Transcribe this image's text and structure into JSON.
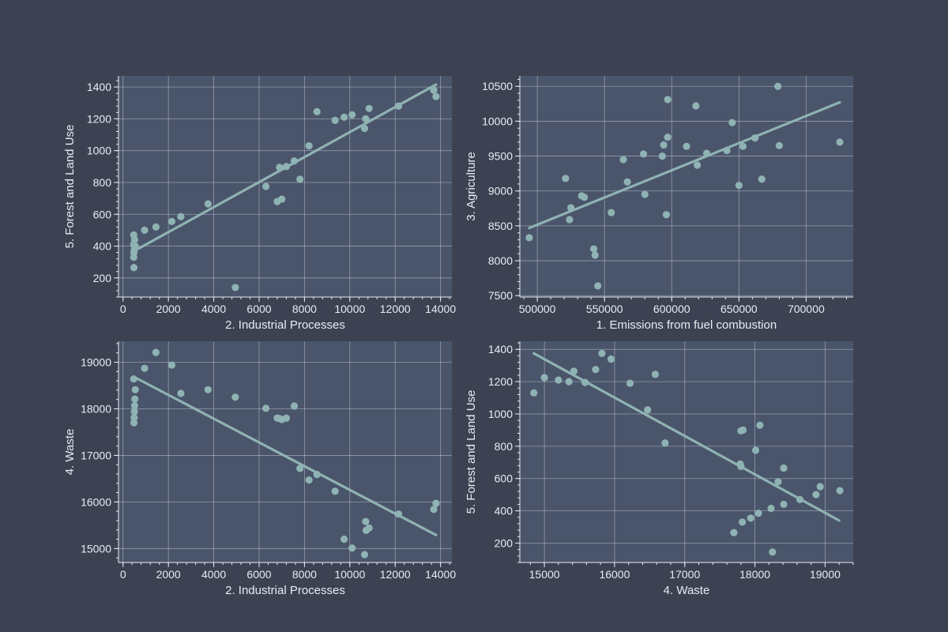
{
  "colors": {
    "background": "#3c4252",
    "plot_area": "#4a556b",
    "points": "#8fb3b3",
    "fit_line": "#8fb3b3",
    "text": "#e8ecf2",
    "grid": "#d0d6e0"
  },
  "chart_data": [
    {
      "type": "scatter",
      "title": "",
      "xlabel": "2. Industrial Processes",
      "ylabel": "5. Forest and Land Use",
      "xlim": [
        -200,
        14500
      ],
      "ylim": [
        80,
        1470
      ],
      "xticks": [
        0,
        2000,
        4000,
        6000,
        8000,
        10000,
        12000,
        14000
      ],
      "yticks": [
        200,
        400,
        600,
        800,
        1000,
        1200,
        1400
      ],
      "x_minor_step": 400,
      "y_minor_step": 40,
      "grid": true,
      "trendline": {
        "x": [
          500,
          13800
        ],
        "y": [
          370,
          1415
        ]
      },
      "points": [
        [
          470,
          470
        ],
        [
          470,
          410
        ],
        [
          480,
          360
        ],
        [
          470,
          330
        ],
        [
          480,
          265
        ],
        [
          500,
          380
        ],
        [
          510,
          440
        ],
        [
          540,
          400
        ],
        [
          950,
          500
        ],
        [
          1450,
          520
        ],
        [
          2150,
          555
        ],
        [
          2550,
          585
        ],
        [
          3750,
          665
        ],
        [
          4950,
          140
        ],
        [
          6300,
          775
        ],
        [
          6800,
          680
        ],
        [
          6900,
          895
        ],
        [
          7000,
          695
        ],
        [
          7200,
          900
        ],
        [
          7550,
          935
        ],
        [
          7800,
          820
        ],
        [
          8200,
          1030
        ],
        [
          8550,
          1245
        ],
        [
          9350,
          1190
        ],
        [
          9750,
          1210
        ],
        [
          10100,
          1225
        ],
        [
          10650,
          1140
        ],
        [
          10700,
          1200
        ],
        [
          10850,
          1265
        ],
        [
          12150,
          1280
        ],
        [
          13700,
          1380
        ],
        [
          13800,
          1340
        ]
      ]
    },
    {
      "type": "scatter",
      "title": "",
      "xlabel": "1. Emissions from fuel combustion",
      "ylabel": "3. Agriculture",
      "xlim": [
        487000,
        735000
      ],
      "ylim": [
        7480,
        10650
      ],
      "xticks": [
        500000,
        550000,
        600000,
        650000,
        700000
      ],
      "yticks": [
        7500,
        8000,
        8500,
        9000,
        9500,
        10000,
        10500
      ],
      "x_minor_step": 10000,
      "y_minor_step": 100,
      "grid": true,
      "trendline": {
        "x": [
          494000,
          725000
        ],
        "y": [
          8470,
          10270
        ]
      },
      "points": [
        [
          494000,
          8330
        ],
        [
          521000,
          9180
        ],
        [
          524000,
          8590
        ],
        [
          525000,
          8760
        ],
        [
          533000,
          8930
        ],
        [
          535000,
          8910
        ],
        [
          542000,
          8170
        ],
        [
          543000,
          8080
        ],
        [
          545000,
          7640
        ],
        [
          555000,
          8690
        ],
        [
          564000,
          9450
        ],
        [
          567000,
          9130
        ],
        [
          579000,
          9530
        ],
        [
          580000,
          8950
        ],
        [
          593000,
          9500
        ],
        [
          594000,
          9660
        ],
        [
          596000,
          8660
        ],
        [
          597000,
          10310
        ],
        [
          597000,
          9770
        ],
        [
          611000,
          9640
        ],
        [
          618000,
          10220
        ],
        [
          619000,
          9370
        ],
        [
          626000,
          9540
        ],
        [
          641000,
          9580
        ],
        [
          645000,
          9980
        ],
        [
          650000,
          9080
        ],
        [
          653000,
          9640
        ],
        [
          662000,
          9760
        ],
        [
          667000,
          9170
        ],
        [
          679000,
          10500
        ],
        [
          680000,
          9650
        ],
        [
          725000,
          9700
        ]
      ]
    },
    {
      "type": "scatter",
      "title": "",
      "xlabel": "2. Industrial Processes",
      "ylabel": "4. Waste",
      "xlim": [
        -200,
        14500
      ],
      "ylim": [
        14700,
        19450
      ],
      "xticks": [
        0,
        2000,
        4000,
        6000,
        8000,
        10000,
        12000,
        14000
      ],
      "yticks": [
        15000,
        16000,
        17000,
        18000,
        19000
      ],
      "x_minor_step": 400,
      "y_minor_step": 200,
      "grid": true,
      "trendline": {
        "x": [
          500,
          13800
        ],
        "y": [
          18680,
          15290
        ]
      },
      "points": [
        [
          470,
          18640
        ],
        [
          480,
          17700
        ],
        [
          490,
          17810
        ],
        [
          500,
          17940
        ],
        [
          510,
          18070
        ],
        [
          520,
          18210
        ],
        [
          540,
          18410
        ],
        [
          950,
          18870
        ],
        [
          1450,
          19210
        ],
        [
          2150,
          18940
        ],
        [
          2550,
          18330
        ],
        [
          3750,
          18410
        ],
        [
          4950,
          18250
        ],
        [
          6300,
          18010
        ],
        [
          6800,
          17800
        ],
        [
          6900,
          17790
        ],
        [
          7000,
          17770
        ],
        [
          7200,
          17800
        ],
        [
          7550,
          18060
        ],
        [
          7800,
          16720
        ],
        [
          8200,
          16470
        ],
        [
          8550,
          16590
        ],
        [
          9350,
          16230
        ],
        [
          9750,
          15200
        ],
        [
          10100,
          15010
        ],
        [
          10650,
          14870
        ],
        [
          10700,
          15580
        ],
        [
          10720,
          15390
        ],
        [
          10850,
          15440
        ],
        [
          12150,
          15740
        ],
        [
          13700,
          15840
        ],
        [
          13800,
          15970
        ]
      ]
    },
    {
      "type": "scatter",
      "title": "",
      "xlabel": "4. Waste",
      "ylabel": "5. Forest and Land Use",
      "xlim": [
        14650,
        19400
      ],
      "ylim": [
        80,
        1450
      ],
      "xticks": [
        15000,
        16000,
        17000,
        18000,
        19000
      ],
      "yticks": [
        200,
        400,
        600,
        800,
        1000,
        1200,
        1400
      ],
      "x_minor_step": 200,
      "y_minor_step": 40,
      "grid": true,
      "trendline": {
        "x": [
          14850,
          19200
        ],
        "y": [
          1375,
          340
        ]
      },
      "points": [
        [
          14850,
          1130
        ],
        [
          15000,
          1225
        ],
        [
          15200,
          1210
        ],
        [
          15350,
          1200
        ],
        [
          15420,
          1265
        ],
        [
          15580,
          1195
        ],
        [
          15730,
          1275
        ],
        [
          15820,
          1375
        ],
        [
          15950,
          1340
        ],
        [
          16220,
          1190
        ],
        [
          16470,
          1025
        ],
        [
          16580,
          1245
        ],
        [
          16720,
          820
        ],
        [
          17700,
          265
        ],
        [
          17790,
          690
        ],
        [
          17800,
          675
        ],
        [
          17800,
          895
        ],
        [
          17820,
          330
        ],
        [
          17830,
          900
        ],
        [
          17940,
          355
        ],
        [
          18010,
          775
        ],
        [
          18050,
          385
        ],
        [
          18070,
          930
        ],
        [
          18230,
          415
        ],
        [
          18250,
          145
        ],
        [
          18330,
          580
        ],
        [
          18410,
          440
        ],
        [
          18410,
          665
        ],
        [
          18640,
          470
        ],
        [
          18870,
          500
        ],
        [
          18930,
          550
        ],
        [
          19210,
          525
        ]
      ]
    }
  ]
}
